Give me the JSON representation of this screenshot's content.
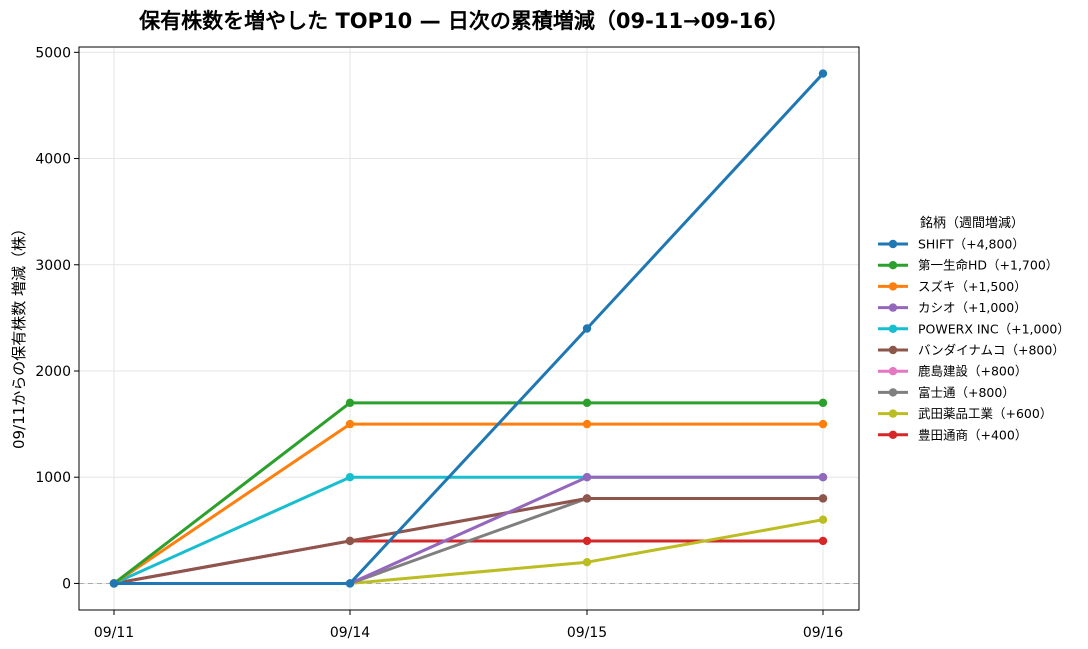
{
  "chart_data": {
    "type": "line",
    "title": "保有株数を増やした TOP10 — 日次の累積増減（09-11→09-16）",
    "xlabel": "",
    "ylabel": "09/11からの保有株数 増減（株）",
    "categories": [
      "09/11",
      "09/14",
      "09/15",
      "09/16"
    ],
    "ylim": [
      -250,
      5050
    ],
    "yticks": [
      0,
      1000,
      2000,
      3000,
      4000,
      5000
    ],
    "grid": true,
    "zero_line": true,
    "legend_title": "銘柄（週間増減）",
    "legend_position": "right",
    "series": [
      {
        "name": "SHIFT（+4,800）",
        "color": "#1f77b4",
        "values": [
          0,
          0,
          2400,
          4800
        ]
      },
      {
        "name": "第一生命HD（+1,700）",
        "color": "#2ca02c",
        "values": [
          0,
          1700,
          1700,
          1700
        ]
      },
      {
        "name": "スズキ（+1,500）",
        "color": "#ff7f0e",
        "values": [
          0,
          1500,
          1500,
          1500
        ]
      },
      {
        "name": "カシオ（+1,000）",
        "color": "#9467bd",
        "values": [
          0,
          0,
          1000,
          1000
        ]
      },
      {
        "name": "POWERX INC（+1,000）",
        "color": "#17becf",
        "values": [
          0,
          1000,
          1000,
          1000
        ]
      },
      {
        "name": "バンダイナムコ（+800）",
        "color": "#8c564b",
        "values": [
          0,
          400,
          800,
          800
        ]
      },
      {
        "name": "鹿島建設（+800）",
        "color": "#e377c2",
        "values": [
          0,
          400,
          800,
          800
        ]
      },
      {
        "name": "富士通（+800）",
        "color": "#7f7f7f",
        "values": [
          0,
          0,
          800,
          800
        ]
      },
      {
        "name": "武田薬品工業（+600）",
        "color": "#bcbd22",
        "values": [
          0,
          0,
          200,
          600
        ]
      },
      {
        "name": "豊田通商（+400）",
        "color": "#d62728",
        "values": [
          0,
          400,
          400,
          400
        ]
      }
    ]
  }
}
